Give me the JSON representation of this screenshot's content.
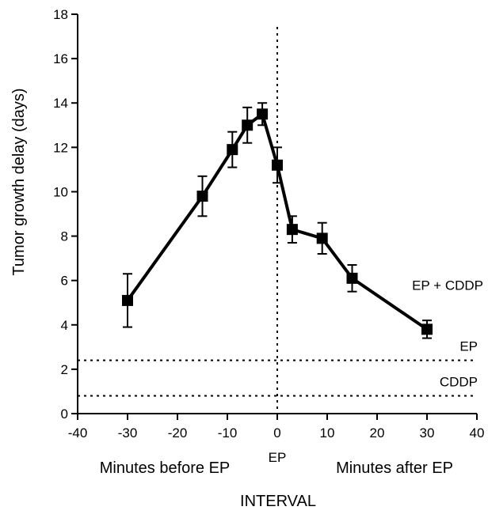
{
  "chart_data": {
    "type": "line",
    "xlabel": "INTERVAL",
    "ylabel": "Tumor growth delay (days)",
    "xlim": [
      -40,
      40
    ],
    "ylim": [
      0,
      18
    ],
    "x_ticks": [
      -40,
      -30,
      -20,
      -10,
      0,
      10,
      20,
      30,
      40
    ],
    "y_ticks": [
      0,
      2,
      4,
      6,
      8,
      10,
      12,
      14,
      16,
      18
    ],
    "x_tick_labels": [
      "-40",
      "-30",
      "-20",
      "-10",
      "0",
      "10",
      "20",
      "30",
      "40"
    ],
    "y_tick_labels": [
      "0",
      "2",
      "4",
      "6",
      "8",
      "10",
      "12",
      "14",
      "16",
      "18"
    ],
    "grid": false,
    "series": [
      {
        "name": "EP + CDDP",
        "color": "#000000",
        "marker": "square",
        "x": [
          -30,
          -15,
          -9,
          -6,
          -3,
          0,
          3,
          9,
          15,
          30
        ],
        "y": [
          5.1,
          9.8,
          11.9,
          13.0,
          13.5,
          11.2,
          8.3,
          7.9,
          6.1,
          3.8
        ],
        "err": [
          1.2,
          0.9,
          0.8,
          0.8,
          0.5,
          0.8,
          0.6,
          0.7,
          0.6,
          0.4
        ]
      }
    ],
    "reference_lines": [
      {
        "label": "EP",
        "orientation": "horizontal",
        "value": 2.4,
        "style": "dotted"
      },
      {
        "label": "CDDP",
        "orientation": "horizontal",
        "value": 0.8,
        "style": "dotted"
      },
      {
        "label": "EP",
        "orientation": "vertical",
        "value": 0,
        "style": "dotted"
      }
    ],
    "annotations": {
      "left": "Minutes before EP",
      "right": "Minutes after EP"
    }
  }
}
